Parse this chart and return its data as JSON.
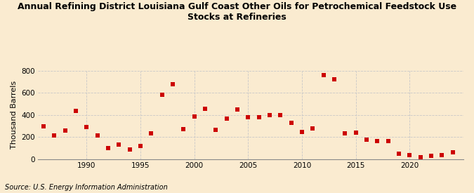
{
  "title": "Annual Refining District Louisiana Gulf Coast Other Oils for Petrochemical Feedstock Use\nStocks at Refineries",
  "ylabel": "Thousand Barrels",
  "source": "Source: U.S. Energy Information Administration",
  "background_color": "#faebd0",
  "plot_background_color": "#faebd0",
  "marker_color": "#cc0000",
  "marker": "s",
  "marker_size": 4,
  "xlim": [
    1985.5,
    2025
  ],
  "ylim": [
    0,
    800
  ],
  "yticks": [
    0,
    200,
    400,
    600,
    800
  ],
  "xticks": [
    1990,
    1995,
    2000,
    2005,
    2010,
    2015,
    2020
  ],
  "grid_color": "#c8c8c8",
  "years": [
    1986,
    1987,
    1988,
    1989,
    1990,
    1991,
    1992,
    1993,
    1994,
    1995,
    1996,
    1997,
    1998,
    1999,
    2000,
    2001,
    2002,
    2003,
    2004,
    2005,
    2006,
    2007,
    2008,
    2009,
    2010,
    2011,
    2012,
    2013,
    2014,
    2015,
    2016,
    2017,
    2018,
    2019,
    2020,
    2021,
    2022,
    2023,
    2024
  ],
  "values": [
    295,
    215,
    260,
    435,
    290,
    210,
    100,
    130,
    85,
    115,
    235,
    580,
    675,
    270,
    385,
    455,
    265,
    365,
    450,
    375,
    375,
    400,
    395,
    325,
    245,
    275,
    760,
    720,
    235,
    240,
    175,
    165,
    160,
    45,
    38,
    15,
    32,
    38,
    62
  ]
}
